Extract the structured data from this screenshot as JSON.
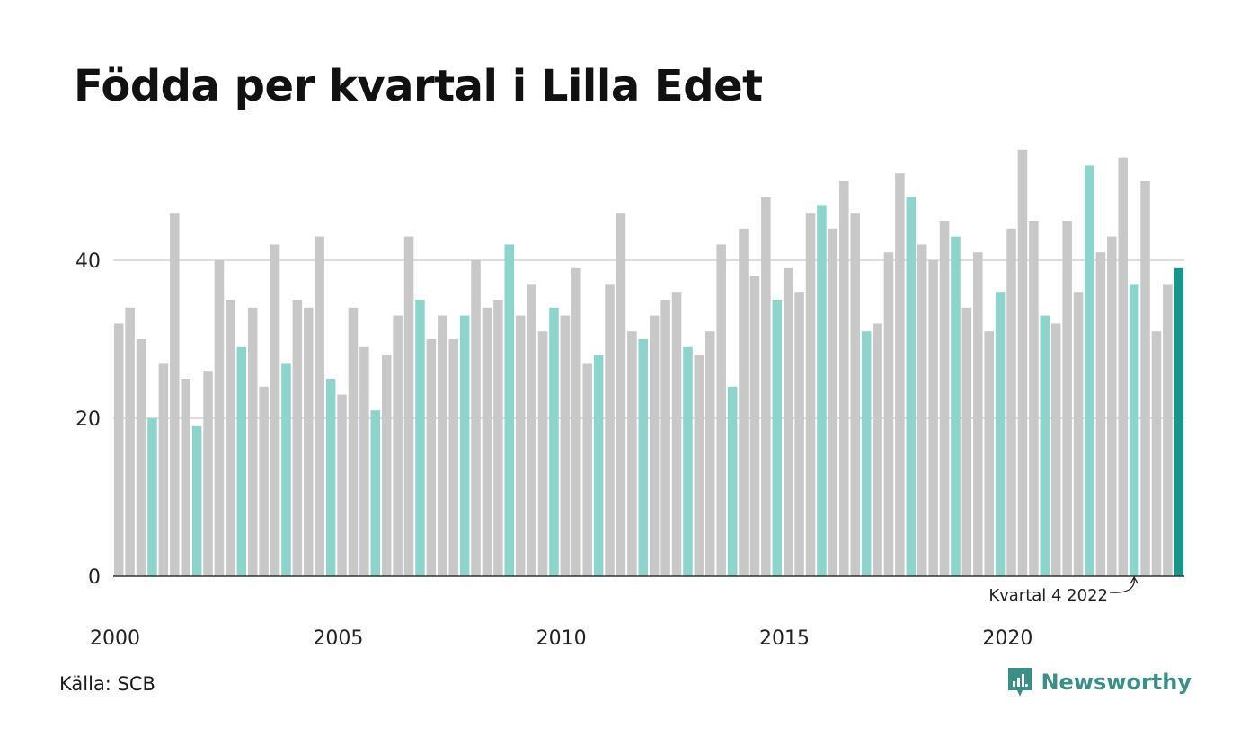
{
  "title": "Födda per kvartal i Lilla Edet",
  "source": "Källa: SCB",
  "brand": {
    "name": "Newsworthy",
    "icon": "newsworthy-logo-icon"
  },
  "colors": {
    "other_quarter": "#c8c8c8",
    "q4": "#8dd4cc",
    "latest": "#17968a",
    "grid": "#dddddd",
    "axis": "#333333",
    "brand": "#3a8f86"
  },
  "chart_data": {
    "type": "bar",
    "title": "Födda per kvartal i Lilla Edet",
    "xlabel": "",
    "ylabel": "",
    "ylim": [
      0,
      55
    ],
    "yticks": [
      0,
      20,
      40
    ],
    "grid": true,
    "start": {
      "year": 2000,
      "quarter": 1
    },
    "xtick_labels": [
      "2000",
      "2005",
      "2010",
      "2015",
      "2020"
    ],
    "annotation": {
      "text": "Kvartal 4 2022",
      "year": 2022,
      "quarter": 4
    },
    "values": [
      32,
      34,
      30,
      20,
      27,
      46,
      25,
      19,
      26,
      40,
      35,
      29,
      34,
      24,
      42,
      27,
      35,
      34,
      43,
      25,
      23,
      34,
      29,
      21,
      28,
      33,
      43,
      35,
      30,
      33,
      30,
      33,
      40,
      34,
      35,
      42,
      33,
      37,
      31,
      34,
      33,
      39,
      27,
      28,
      37,
      46,
      31,
      30,
      33,
      35,
      36,
      29,
      28,
      31,
      42,
      24,
      44,
      38,
      48,
      35,
      39,
      36,
      46,
      47,
      44,
      50,
      46,
      31,
      32,
      41,
      51,
      48,
      42,
      40,
      45,
      43,
      34,
      41,
      31,
      36,
      44,
      54,
      45,
      33,
      32,
      45,
      36,
      52,
      41,
      43,
      53,
      37,
      50,
      31,
      37,
      39
    ]
  }
}
